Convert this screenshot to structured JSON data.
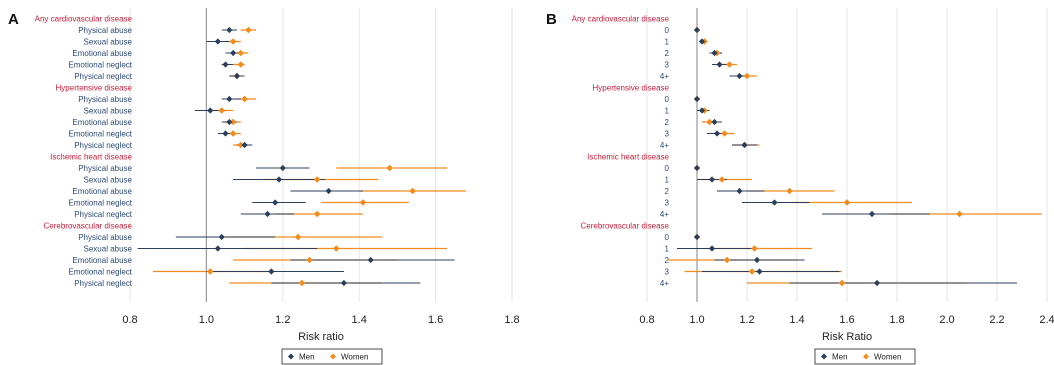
{
  "colors": {
    "men": "#2b3f5c",
    "women": "#f28c1c",
    "header": "#c41e3a",
    "label": "#2c4a73",
    "ref": "#999999",
    "grid": "#e6e6e6"
  },
  "legend": {
    "men": "Men",
    "women": "Women"
  },
  "chart_data": [
    {
      "type": "forest",
      "panel": "A",
      "xlabel": "Risk ratio",
      "xlim": [
        0.8,
        1.8
      ],
      "xticks": [
        "0.8",
        "1.0",
        "1.2",
        "1.4",
        "1.6",
        "1.8"
      ],
      "reference": 1.0,
      "grid": true,
      "legend_position": "bottom",
      "groups": [
        {
          "header": "Any cardiovascular disease",
          "rows": [
            {
              "label": "Physical abuse",
              "men": [
                1.06,
                1.04,
                1.08
              ],
              "women": [
                1.11,
                1.09,
                1.13
              ]
            },
            {
              "label": "Sexual abuse",
              "men": [
                1.03,
                1.0,
                1.06
              ],
              "women": [
                1.07,
                1.05,
                1.09
              ]
            },
            {
              "label": "Emotional abuse",
              "men": [
                1.07,
                1.05,
                1.09
              ],
              "women": [
                1.09,
                1.08,
                1.11
              ]
            },
            {
              "label": "Emotional neglect",
              "men": [
                1.05,
                1.04,
                1.07
              ],
              "women": [
                1.09,
                1.07,
                1.1
              ]
            },
            {
              "label": "Physical neglect",
              "men": [
                1.08,
                1.06,
                1.1
              ],
              "women": [
                1.08,
                1.06,
                1.09
              ]
            }
          ]
        },
        {
          "header": "Hypertensive disease",
          "rows": [
            {
              "label": "Physical abuse",
              "men": [
                1.06,
                1.04,
                1.09
              ],
              "women": [
                1.1,
                1.08,
                1.13
              ]
            },
            {
              "label": "Sexual abuse",
              "men": [
                1.01,
                0.97,
                1.05
              ],
              "women": [
                1.04,
                1.01,
                1.07
              ]
            },
            {
              "label": "Emotional abuse",
              "men": [
                1.06,
                1.04,
                1.08
              ],
              "women": [
                1.07,
                1.05,
                1.09
              ]
            },
            {
              "label": "Emotional neglect",
              "men": [
                1.05,
                1.03,
                1.07
              ],
              "women": [
                1.07,
                1.05,
                1.09
              ]
            },
            {
              "label": "Physical neglect",
              "men": [
                1.1,
                1.08,
                1.12
              ],
              "women": [
                1.09,
                1.07,
                1.11
              ]
            }
          ]
        },
        {
          "header": "Ischemic heart disease",
          "rows": [
            {
              "label": "Physical abuse",
              "men": [
                1.2,
                1.13,
                1.27
              ],
              "women": [
                1.48,
                1.34,
                1.63
              ]
            },
            {
              "label": "Sexual abuse",
              "men": [
                1.19,
                1.07,
                1.31
              ],
              "women": [
                1.29,
                1.15,
                1.45
              ]
            },
            {
              "label": "Emotional abuse",
              "men": [
                1.32,
                1.22,
                1.41
              ],
              "women": [
                1.54,
                1.4,
                1.68
              ]
            },
            {
              "label": "Emotional neglect",
              "men": [
                1.18,
                1.12,
                1.26
              ],
              "women": [
                1.41,
                1.3,
                1.53
              ]
            },
            {
              "label": "Physical neglect",
              "men": [
                1.16,
                1.09,
                1.23
              ],
              "women": [
                1.29,
                1.18,
                1.41
              ]
            }
          ]
        },
        {
          "header": "Cerebrovascular disease",
          "rows": [
            {
              "label": "Physical abuse",
              "men": [
                1.04,
                0.92,
                1.18
              ],
              "women": [
                1.24,
                1.05,
                1.46
              ]
            },
            {
              "label": "Sexual abuse",
              "men": [
                1.03,
                0.82,
                1.29
              ],
              "women": [
                1.34,
                1.1,
                1.63
              ]
            },
            {
              "label": "Emotional abuse",
              "men": [
                1.43,
                1.22,
                1.65
              ],
              "women": [
                1.27,
                1.07,
                1.5
              ]
            },
            {
              "label": "Emotional neglect",
              "men": [
                1.17,
                1.0,
                1.36
              ],
              "women": [
                1.01,
                0.86,
                1.18
              ]
            },
            {
              "label": "Physical neglect",
              "men": [
                1.36,
                1.17,
                1.56
              ],
              "women": [
                1.25,
                1.06,
                1.46
              ]
            }
          ]
        }
      ]
    },
    {
      "type": "forest",
      "panel": "B",
      "xlabel": "Risk Ratio",
      "xlim": [
        0.8,
        2.4
      ],
      "xticks": [
        "0.8",
        "1.0",
        "1.2",
        "1.4",
        "1.6",
        "1.8",
        "2.0",
        "2.2",
        "2.4"
      ],
      "reference": 1.0,
      "grid": true,
      "legend_position": "bottom",
      "groups": [
        {
          "header": "Any cardiovascular disease",
          "rows": [
            {
              "label": "0",
              "men": [
                1.0,
                1.0,
                1.0
              ],
              "women": [
                1.0,
                1.0,
                1.0
              ]
            },
            {
              "label": "1",
              "men": [
                1.02,
                1.01,
                1.04
              ],
              "women": [
                1.03,
                1.01,
                1.04
              ]
            },
            {
              "label": "2",
              "men": [
                1.07,
                1.05,
                1.1
              ],
              "women": [
                1.08,
                1.06,
                1.1
              ]
            },
            {
              "label": "3",
              "men": [
                1.09,
                1.06,
                1.12
              ],
              "women": [
                1.13,
                1.1,
                1.16
              ]
            },
            {
              "label": "4+",
              "men": [
                1.17,
                1.13,
                1.21
              ],
              "women": [
                1.2,
                1.16,
                1.24
              ]
            }
          ]
        },
        {
          "header": "Hypertensive disease",
          "rows": [
            {
              "label": "0",
              "men": [
                1.0,
                1.0,
                1.0
              ],
              "women": [
                1.0,
                1.0,
                1.0
              ]
            },
            {
              "label": "1",
              "men": [
                1.02,
                1.0,
                1.05
              ],
              "women": [
                1.03,
                1.01,
                1.05
              ]
            },
            {
              "label": "2",
              "men": [
                1.07,
                1.04,
                1.1
              ],
              "women": [
                1.05,
                1.02,
                1.08
              ]
            },
            {
              "label": "3",
              "men": [
                1.08,
                1.04,
                1.12
              ],
              "women": [
                1.11,
                1.07,
                1.15
              ]
            },
            {
              "label": "4+",
              "men": [
                1.19,
                1.14,
                1.24
              ],
              "women": [
                1.19,
                1.14,
                1.25
              ]
            }
          ]
        },
        {
          "header": "Ischemic heart disease",
          "rows": [
            {
              "label": "0",
              "men": [
                1.0,
                1.0,
                1.0
              ],
              "women": [
                1.0,
                1.0,
                1.0
              ]
            },
            {
              "label": "1",
              "men": [
                1.06,
                1.0,
                1.12
              ],
              "women": [
                1.1,
                1.0,
                1.22
              ]
            },
            {
              "label": "2",
              "men": [
                1.17,
                1.08,
                1.27
              ],
              "women": [
                1.37,
                1.2,
                1.55
              ]
            },
            {
              "label": "3",
              "men": [
                1.31,
                1.18,
                1.45
              ],
              "women": [
                1.6,
                1.38,
                1.86
              ]
            },
            {
              "label": "4+",
              "men": [
                1.7,
                1.5,
                1.93
              ],
              "women": [
                2.05,
                1.77,
                2.38
              ]
            }
          ]
        },
        {
          "header": "Cerebrovascular disease",
          "rows": [
            {
              "label": "0",
              "men": [
                1.0,
                1.0,
                1.0
              ],
              "women": [
                1.0,
                1.0,
                1.0
              ]
            },
            {
              "label": "1",
              "men": [
                1.06,
                0.92,
                1.22
              ],
              "women": [
                1.23,
                1.03,
                1.46
              ]
            },
            {
              "label": "2",
              "men": [
                1.24,
                1.07,
                1.43
              ],
              "women": [
                1.12,
                0.88,
                1.4
              ]
            },
            {
              "label": "3",
              "men": [
                1.25,
                1.02,
                1.57
              ],
              "women": [
                1.22,
                0.95,
                1.58
              ]
            },
            {
              "label": "4+",
              "men": [
                1.72,
                1.37,
                2.28
              ],
              "women": [
                1.58,
                1.2,
                2.08
              ]
            }
          ]
        }
      ]
    }
  ]
}
